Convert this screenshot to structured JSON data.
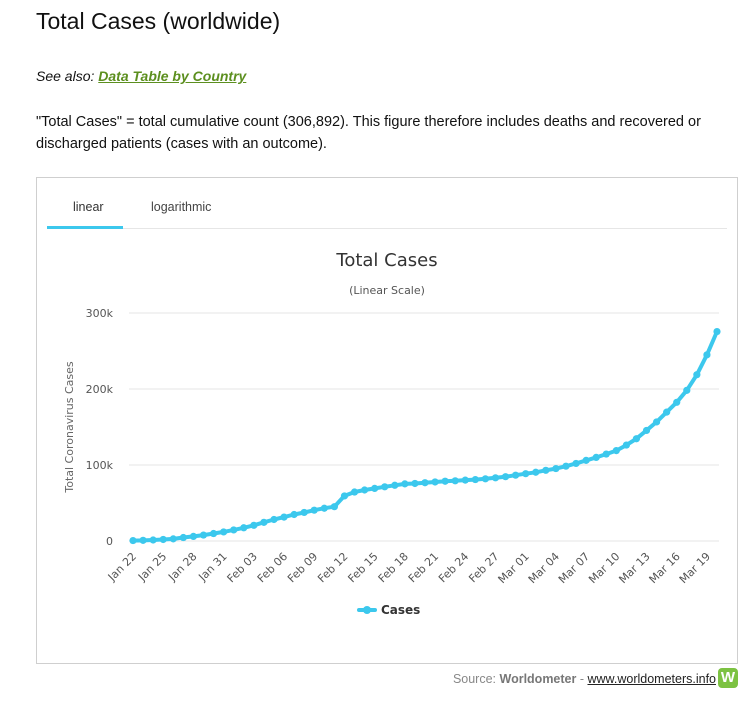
{
  "page": {
    "title": "Total Cases (worldwide)",
    "see_also_prefix": "See also: ",
    "see_also_link": "Data Table by Country",
    "description": "\"Total Cases\" = total cumulative count (306,892). This figure therefore includes deaths and recovered or discharged patients (cases with an outcome).",
    "tabs": [
      {
        "label": "linear"
      },
      {
        "label": "logarithmic"
      }
    ],
    "source_prefix": "Source: ",
    "source_name": "Worldometer",
    "source_sep": " - ",
    "source_link": "www.worldometers.info",
    "logo_letter": "W"
  },
  "chart_data": {
    "type": "line",
    "title": "Total Cases",
    "subtitle": "(Linear Scale)",
    "xlabel": "",
    "ylabel": "Total Coronavirus Cases",
    "ylim": [
      0,
      300000
    ],
    "yticks": [
      0,
      100000,
      200000,
      300000
    ],
    "ytick_labels": [
      "0",
      "100k",
      "200k",
      "300k"
    ],
    "xtick_labels": [
      "Jan 22",
      "Jan 25",
      "Jan 28",
      "Jan 31",
      "Feb 03",
      "Feb 06",
      "Feb 09",
      "Feb 12",
      "Feb 15",
      "Feb 18",
      "Feb 21",
      "Feb 24",
      "Feb 27",
      "Mar 01",
      "Mar 04",
      "Mar 07",
      "Mar 10",
      "Mar 13",
      "Mar 16",
      "Mar 19"
    ],
    "grid": true,
    "legend_position": "bottom",
    "color": "#3cc8ed",
    "series": [
      {
        "name": "Cases",
        "values": [
          580,
          845,
          1317,
          2015,
          2800,
          4581,
          6058,
          7813,
          9821,
          11948,
          14551,
          17389,
          20628,
          24553,
          28276,
          31439,
          34876,
          37552,
          40553,
          43099,
          45134,
          59287,
          64438,
          67100,
          69197,
          71329,
          73332,
          75184,
          75700,
          76677,
          77673,
          78651,
          79205,
          80087,
          80828,
          81820,
          83112,
          84615,
          86604,
          88585,
          90443,
          93016,
          95314,
          98425,
          102050,
          106099,
          109991,
          114381,
          118948,
          126214,
          134576,
          145483,
          156653,
          169593,
          182490,
          198238,
          218822,
          244933,
          275597
        ]
      }
    ]
  }
}
